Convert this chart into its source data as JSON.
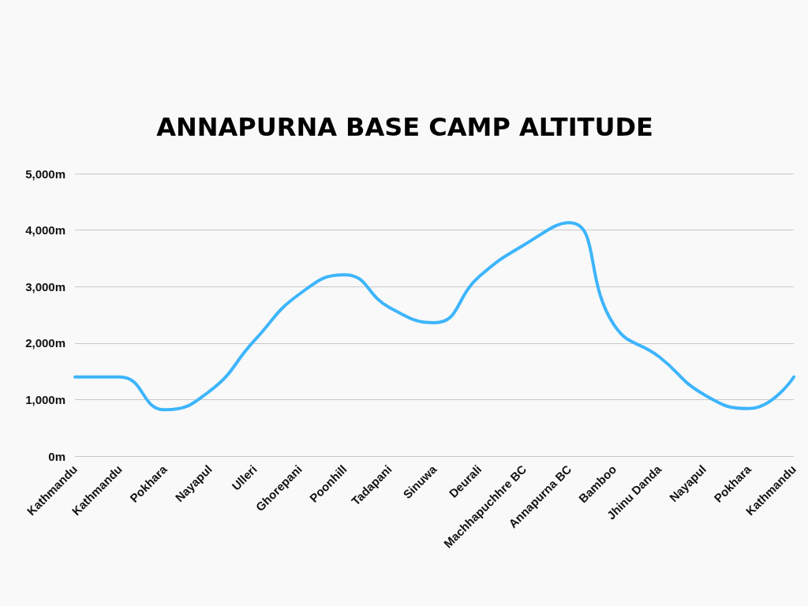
{
  "chart_data": {
    "type": "line",
    "title": "ANNAPURNA BASE CAMP ALTITUDE",
    "categories": [
      "Kathmandu",
      "Kathmandu",
      "Pokhara",
      "Nayapul",
      "Ulleri",
      "Ghorepani",
      "Poonhill",
      "Tadapani",
      "Sinuwa",
      "Deurali",
      "Machhapuchhre BC",
      "Annapurna BC",
      "Bamboo",
      "Jhinu Danda",
      "Nayapul",
      "Pokhara",
      "Kathmandu"
    ],
    "series": [
      {
        "color": "#3db5fc",
        "values": [
          1400,
          1400,
          820,
          1150,
          2050,
          2870,
          3210,
          2630,
          2360,
          3180,
          3740,
          4130,
          2320,
          1760,
          1090,
          840,
          1400
        ]
      }
    ],
    "ylim": [
      0,
      5000
    ],
    "yticks": [
      {
        "value": 0,
        "label": "0m"
      },
      {
        "value": 1000,
        "label": "1,000m"
      },
      {
        "value": 2000,
        "label": "2,000m"
      },
      {
        "value": 3000,
        "label": "3,000m"
      },
      {
        "value": 4000,
        "label": "4,000m"
      },
      {
        "value": 5000,
        "label": "5,000m"
      }
    ],
    "grid": "y",
    "marker": "none",
    "line_style": "solid"
  }
}
